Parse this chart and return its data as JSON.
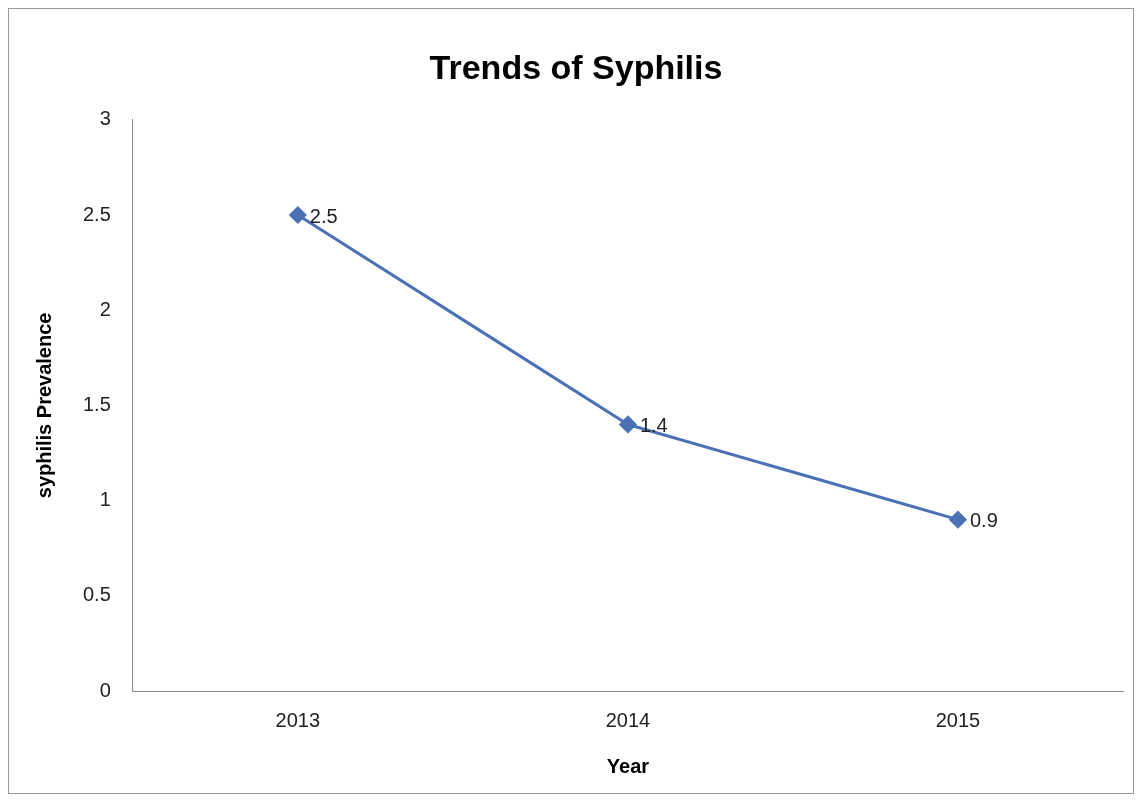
{
  "chart_data": {
    "type": "line",
    "title": "Trends of Syphilis",
    "xlabel": "Year",
    "ylabel": "syphilis Prevalence",
    "categories": [
      "2013",
      "2014",
      "2015"
    ],
    "series": [
      {
        "color": "#4a70b5",
        "values": [
          2.5,
          1.4,
          0.9
        ]
      }
    ],
    "ylim": [
      0,
      3
    ],
    "yticks": [
      0,
      0.5,
      1,
      1.5,
      2,
      2.5,
      3
    ],
    "marker": "diamond",
    "line_style": "solid",
    "data_labels": true
  }
}
